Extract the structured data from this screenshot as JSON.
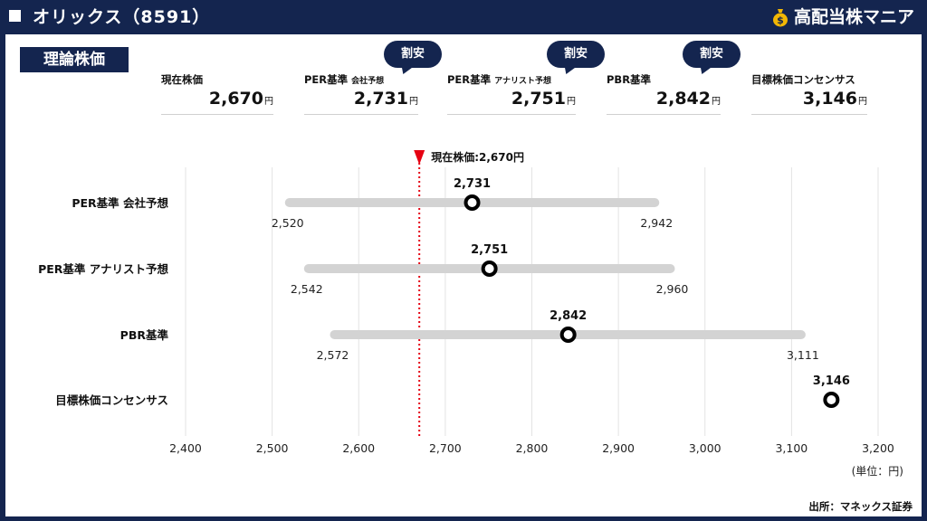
{
  "header": {
    "title": "オリックス（8591）",
    "brand": "高配当株マニア"
  },
  "section_label": "理論株価",
  "badge_text": "割安",
  "kpis": [
    {
      "label": "現在株価",
      "sub": "",
      "value": "2,670",
      "unit": "円",
      "badge": false
    },
    {
      "label": "PER基準",
      "sub": "会社予想",
      "value": "2,731",
      "unit": "円",
      "badge": true
    },
    {
      "label": "PER基準",
      "sub": "アナリスト予想",
      "value": "2,751",
      "unit": "円",
      "badge": true
    },
    {
      "label": "PBR基準",
      "sub": "",
      "value": "2,842",
      "unit": "円",
      "badge": true
    },
    {
      "label": "目標株価コンセンサス",
      "sub": "",
      "value": "3,146",
      "unit": "円",
      "badge": false
    }
  ],
  "chart_data": {
    "type": "range-dot",
    "current_price": 2670,
    "current_label": "現在株価:2,670円",
    "xlim": [
      2400,
      3200
    ],
    "xticks": [
      2400,
      2500,
      2600,
      2700,
      2800,
      2900,
      3000,
      3100,
      3200
    ],
    "xtick_labels": [
      "2,400",
      "2,500",
      "2,600",
      "2,700",
      "2,800",
      "2,900",
      "3,000",
      "3,100",
      "3,200"
    ],
    "unit_label": "(単位：円)",
    "grid": true,
    "rows": [
      {
        "label": "PER基準 会社予想",
        "low": 2520,
        "high": 2942,
        "value": 2731,
        "low_label": "2,520",
        "high_label": "2,942",
        "value_label": "2,731"
      },
      {
        "label": "PER基準 アナリスト予想",
        "low": 2542,
        "high": 2960,
        "value": 2751,
        "low_label": "2,542",
        "high_label": "2,960",
        "value_label": "2,751"
      },
      {
        "label": "PBR基準",
        "low": 2572,
        "high": 3111,
        "value": 2842,
        "low_label": "2,572",
        "high_label": "3,111",
        "value_label": "2,842"
      },
      {
        "label": "目標株価コンセンサス",
        "low": null,
        "high": null,
        "value": 3146,
        "low_label": "",
        "high_label": "",
        "value_label": "3,146"
      }
    ]
  },
  "source": "出所：マネックス証券",
  "colors": {
    "navy": "#14254f",
    "range_bar": "#d3d3d3",
    "current_line": "#e60012",
    "gold": "#f2b705"
  }
}
